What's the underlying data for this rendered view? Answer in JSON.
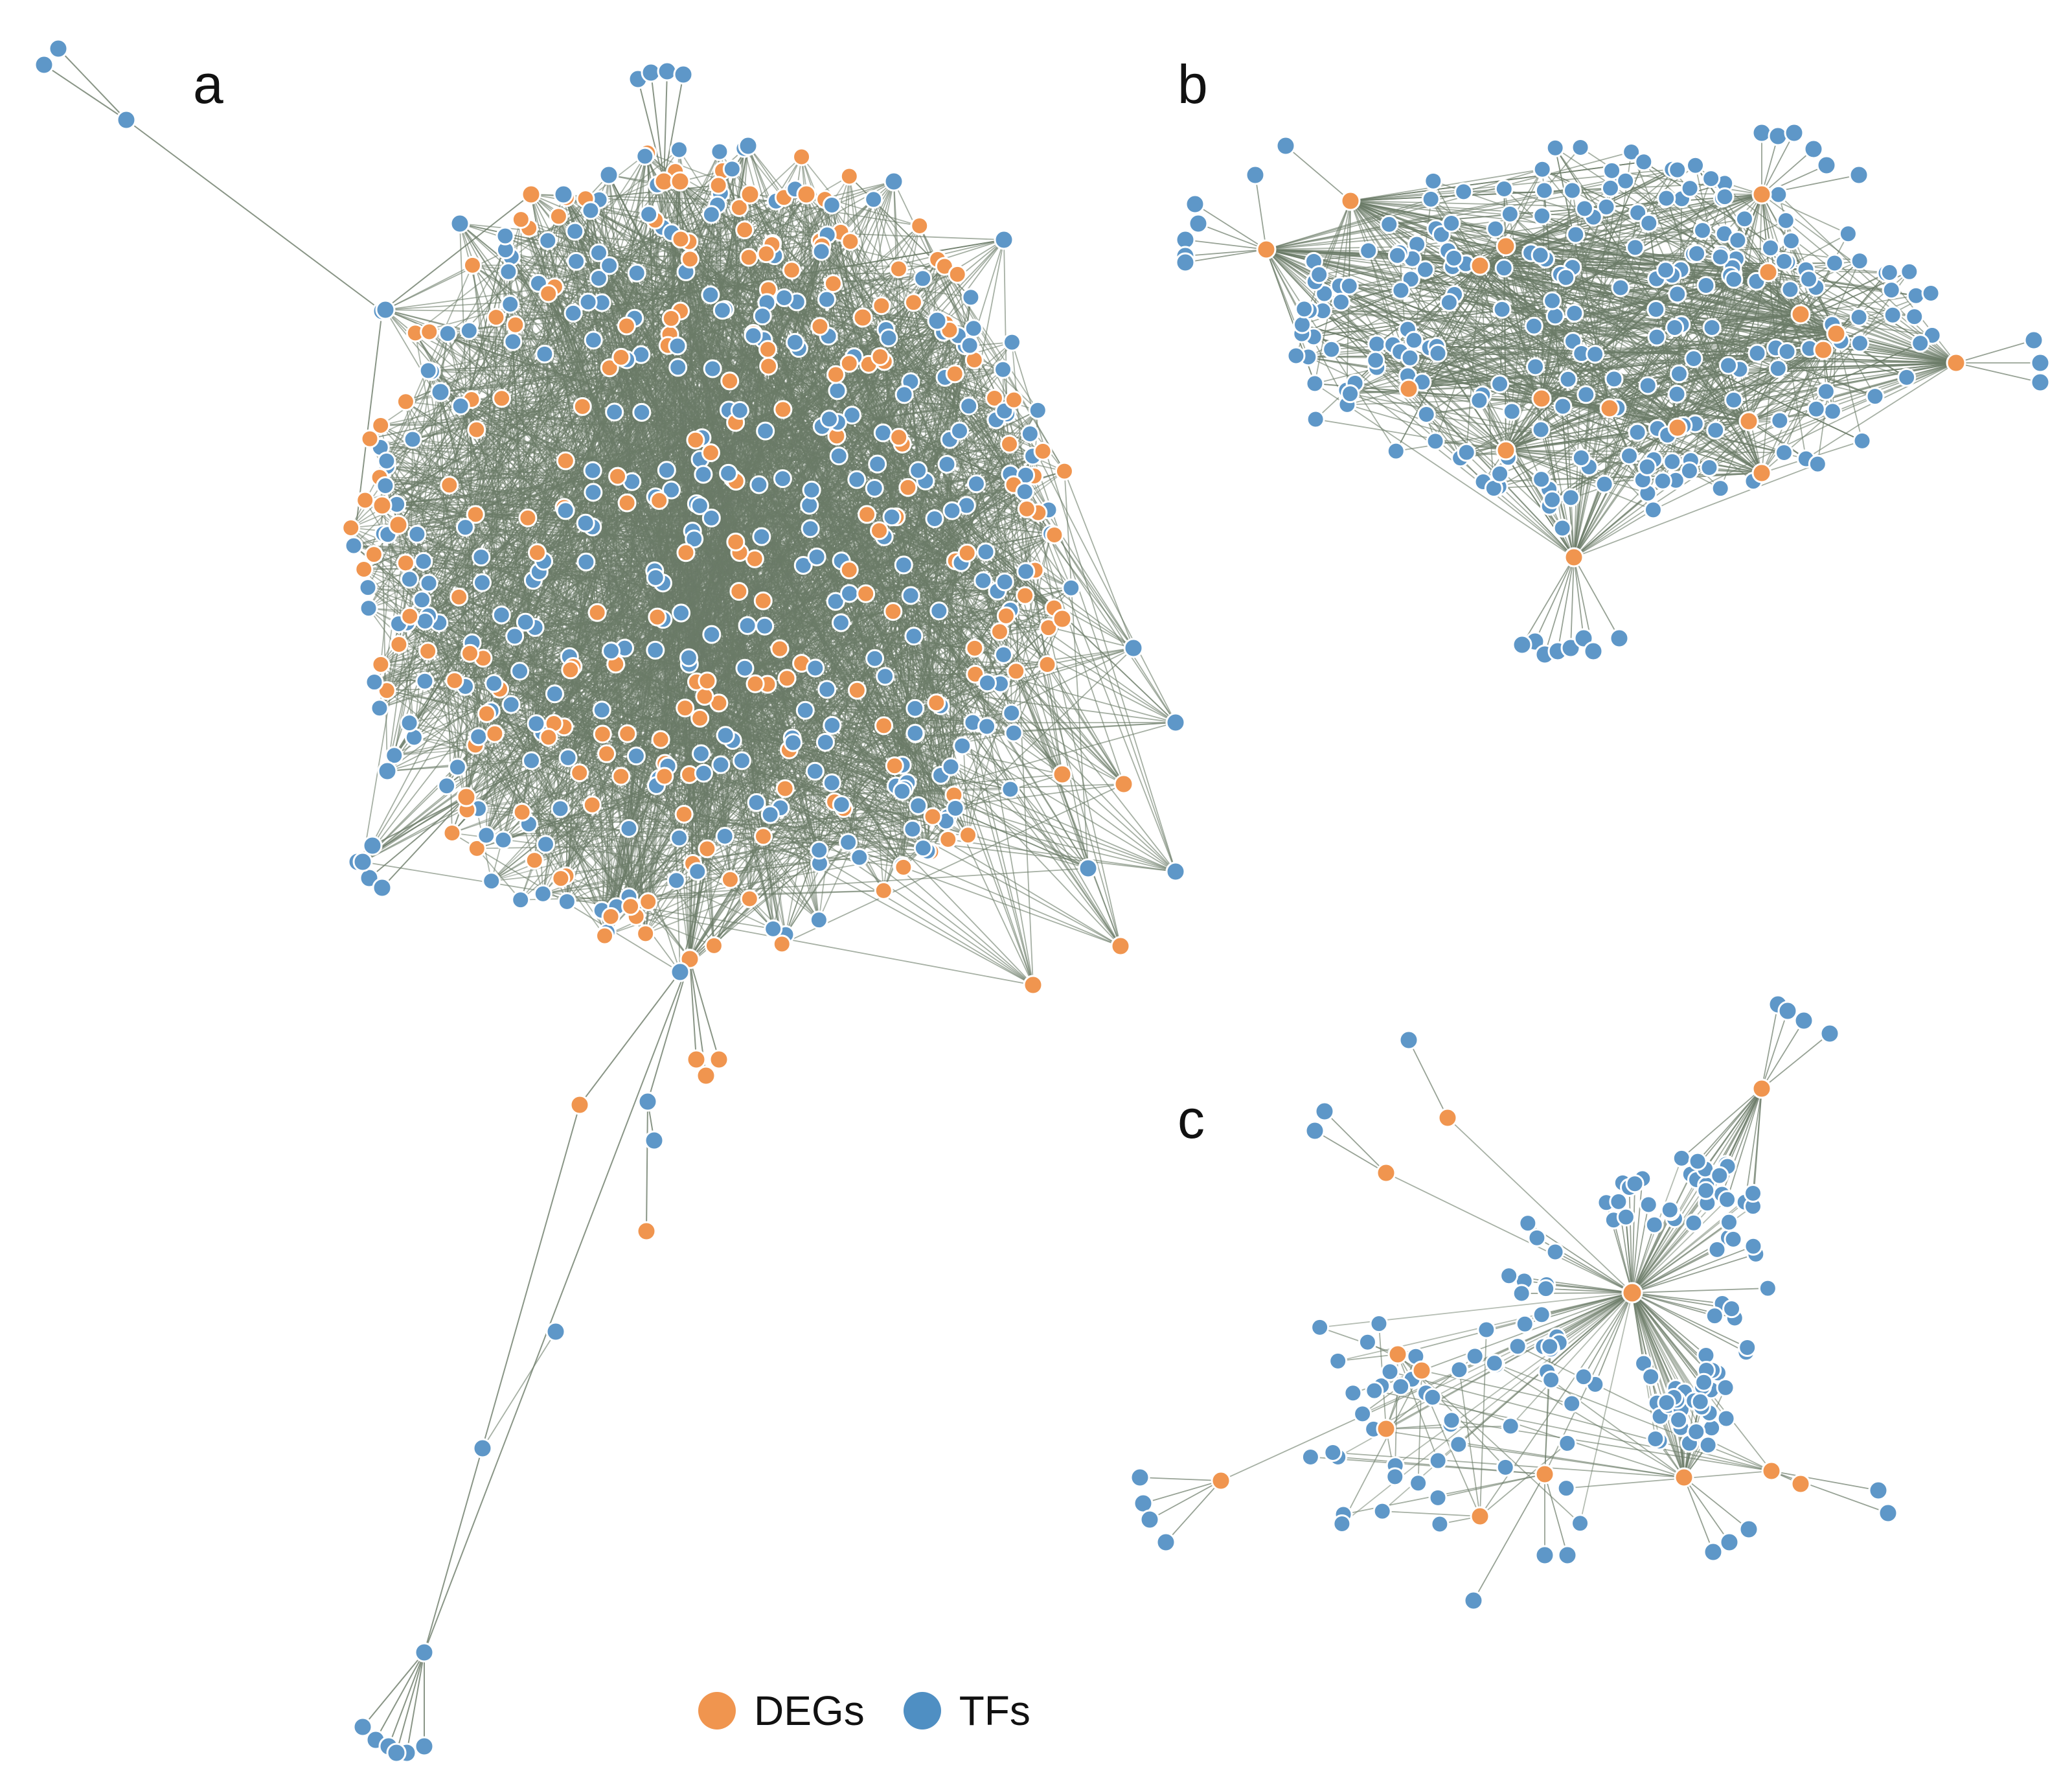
{
  "panels": [
    {
      "label": "a",
      "nodes": "dense"
    },
    {
      "label": "b",
      "nodes": "medium"
    },
    {
      "label": "c",
      "nodes": "sparse"
    }
  ],
  "legend": [
    {
      "label": "DEGs",
      "color": "#f0954f"
    },
    {
      "label": "TFs",
      "color": "#4f8fc3"
    }
  ],
  "colors": {
    "edge": "#6b7b68",
    "deg_node": "#f0954f",
    "tf_node": "#5e97c8",
    "node_outline": "#ffffff"
  }
}
